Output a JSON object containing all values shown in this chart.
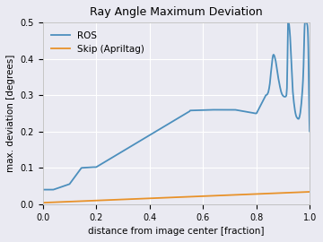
{
  "title": "Ray Angle Maximum Deviation",
  "xlabel": "distance from image center [fraction]",
  "ylabel": "max. deviation [degrees]",
  "xlim": [
    0.0,
    1.0
  ],
  "ylim": [
    0.0,
    0.5
  ],
  "legend": [
    "ROS",
    "Skip (Apriltag)"
  ],
  "ros_color": "#4c8fbd",
  "skip_color": "#e8922a",
  "background_color": "#eaeaf2",
  "grid_color": "#ffffff",
  "figsize": [
    3.6,
    2.7
  ],
  "dpi": 100,
  "title_fontsize": 9,
  "label_fontsize": 7.5,
  "tick_fontsize": 7,
  "legend_fontsize": 7.5,
  "linewidth": 1.3
}
